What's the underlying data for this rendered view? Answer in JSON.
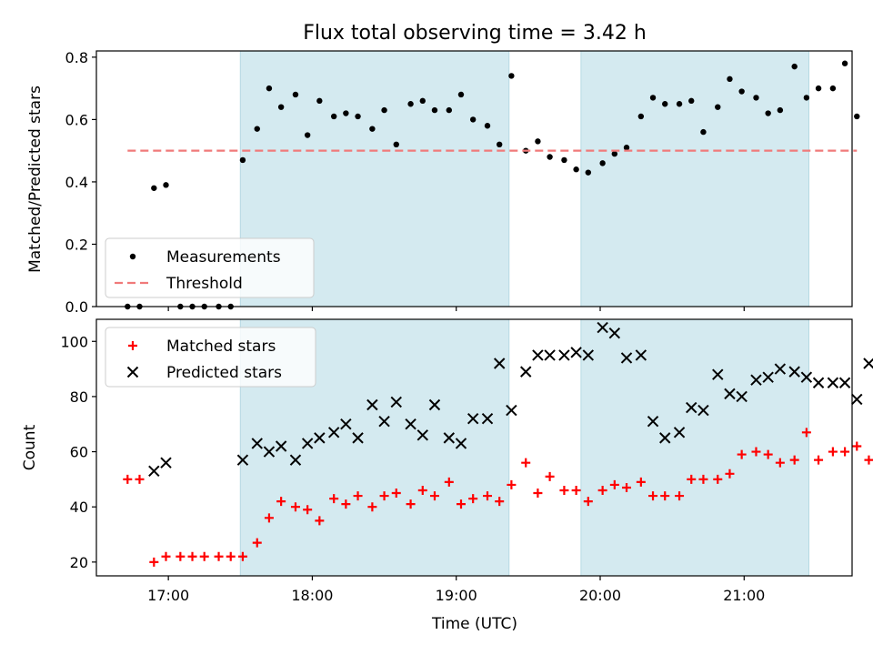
{
  "chart_data": [
    {
      "type": "scatter",
      "title": "Flux total observing time = 3.42 h",
      "ylabel": "Matched/Predicted stars",
      "xlabel": "",
      "xlim": [
        "16:30",
        "21:45"
      ],
      "ylim": [
        0,
        0.82
      ],
      "yticks": [
        0.0,
        0.2,
        0.4,
        0.6,
        0.8
      ],
      "ytick_labels": [
        "0.0",
        "0.2",
        "0.4",
        "0.6",
        "0.8"
      ],
      "grid": false,
      "legend": "lower-left",
      "shaded_spans": [
        [
          "17:30",
          "19:22"
        ],
        [
          "19:52",
          "21:27"
        ]
      ],
      "span_color": "#d4eaf0",
      "series": [
        {
          "name": "Measurements",
          "marker": "dot",
          "color": "#000000",
          "points": [
            [
              "16:43",
              0.0
            ],
            [
              "16:48",
              0.0
            ],
            [
              "16:54",
              0.38
            ],
            [
              "16:59",
              0.39
            ],
            [
              "17:05",
              0.0
            ],
            [
              "17:10",
              0.0
            ],
            [
              "17:15",
              0.0
            ],
            [
              "17:21",
              0.0
            ],
            [
              "17:26",
              0.0
            ],
            [
              "17:31",
              0.47
            ],
            [
              "17:37",
              0.57
            ],
            [
              "17:42",
              0.7
            ],
            [
              "17:47",
              0.64
            ],
            [
              "17:53",
              0.68
            ],
            [
              "17:58",
              0.55
            ],
            [
              "18:03",
              0.66
            ],
            [
              "18:09",
              0.61
            ],
            [
              "18:14",
              0.62
            ],
            [
              "18:19",
              0.61
            ],
            [
              "18:25",
              0.57
            ],
            [
              "18:30",
              0.63
            ],
            [
              "18:35",
              0.52
            ],
            [
              "18:41",
              0.65
            ],
            [
              "18:46",
              0.66
            ],
            [
              "18:51",
              0.63
            ],
            [
              "18:57",
              0.63
            ],
            [
              "19:02",
              0.68
            ],
            [
              "19:07",
              0.6
            ],
            [
              "19:13",
              0.58
            ],
            [
              "19:18",
              0.52
            ],
            [
              "19:23",
              0.74
            ],
            [
              "19:29",
              0.5
            ],
            [
              "19:34",
              0.53
            ],
            [
              "19:39",
              0.48
            ],
            [
              "19:45",
              0.47
            ],
            [
              "19:50",
              0.44
            ],
            [
              "19:55",
              0.43
            ],
            [
              "20:01",
              0.46
            ],
            [
              "20:06",
              0.49
            ],
            [
              "20:11",
              0.51
            ],
            [
              "20:17",
              0.61
            ],
            [
              "20:22",
              0.67
            ],
            [
              "20:27",
              0.65
            ],
            [
              "20:33",
              0.65
            ],
            [
              "20:38",
              0.66
            ],
            [
              "20:43",
              0.56
            ],
            [
              "20:49",
              0.64
            ],
            [
              "20:54",
              0.73
            ],
            [
              "20:59",
              0.69
            ],
            [
              "21:05",
              0.67
            ],
            [
              "21:10",
              0.62
            ],
            [
              "21:15",
              0.63
            ],
            [
              "21:21",
              0.77
            ],
            [
              "21:26",
              0.67
            ],
            [
              "21:31",
              0.7
            ],
            [
              "21:37",
              0.7
            ],
            [
              "21:42",
              0.78
            ],
            [
              "21:47",
              0.61
            ]
          ]
        },
        {
          "name": "Threshold",
          "marker": "dashed-line",
          "color": "#f07a7a",
          "points": [
            [
              "16:43",
              0.5
            ],
            [
              "21:47",
              0.5
            ]
          ]
        }
      ]
    },
    {
      "type": "scatter",
      "title": "",
      "ylabel": "Count",
      "xlabel": "Time (UTC)",
      "xlim": [
        "16:30",
        "21:45"
      ],
      "ylim": [
        15,
        108
      ],
      "yticks": [
        20,
        40,
        60,
        80,
        100
      ],
      "ytick_labels": [
        "20",
        "40",
        "60",
        "80",
        "100"
      ],
      "xticks": [
        "17:00",
        "18:00",
        "19:00",
        "20:00",
        "21:00"
      ],
      "xtick_labels": [
        "17:00",
        "18:00",
        "19:00",
        "20:00",
        "21:00"
      ],
      "grid": false,
      "legend": "upper-left",
      "shaded_spans": [
        [
          "17:30",
          "19:22"
        ],
        [
          "19:52",
          "21:27"
        ]
      ],
      "span_color": "#d4eaf0",
      "series": [
        {
          "name": "Matched stars",
          "marker": "plus",
          "color": "#ff0000",
          "points": [
            [
              "16:43",
              50
            ],
            [
              "16:48",
              50
            ],
            [
              "16:54",
              20
            ],
            [
              "16:59",
              22
            ],
            [
              "17:05",
              22
            ],
            [
              "17:10",
              22
            ],
            [
              "17:15",
              22
            ],
            [
              "17:21",
              22
            ],
            [
              "17:26",
              22
            ],
            [
              "17:31",
              22
            ],
            [
              "17:37",
              27
            ],
            [
              "17:42",
              36
            ],
            [
              "17:47",
              42
            ],
            [
              "17:53",
              40
            ],
            [
              "17:58",
              39
            ],
            [
              "18:03",
              35
            ],
            [
              "18:09",
              43
            ],
            [
              "18:14",
              41
            ],
            [
              "18:19",
              44
            ],
            [
              "18:25",
              40
            ],
            [
              "18:30",
              44
            ],
            [
              "18:35",
              45
            ],
            [
              "18:41",
              41
            ],
            [
              "18:46",
              46
            ],
            [
              "18:51",
              44
            ],
            [
              "18:57",
              49
            ],
            [
              "19:02",
              41
            ],
            [
              "19:07",
              43
            ],
            [
              "19:13",
              44
            ],
            [
              "19:18",
              42
            ],
            [
              "19:23",
              48
            ],
            [
              "19:29",
              56
            ],
            [
              "19:34",
              45
            ],
            [
              "19:39",
              51
            ],
            [
              "19:45",
              46
            ],
            [
              "19:50",
              46
            ],
            [
              "19:55",
              42
            ],
            [
              "20:01",
              46
            ],
            [
              "20:06",
              48
            ],
            [
              "20:11",
              47
            ],
            [
              "20:17",
              49
            ],
            [
              "20:22",
              44
            ],
            [
              "20:27",
              44
            ],
            [
              "20:33",
              44
            ],
            [
              "20:38",
              50
            ],
            [
              "20:43",
              50
            ],
            [
              "20:49",
              50
            ],
            [
              "20:54",
              52
            ],
            [
              "20:59",
              59
            ],
            [
              "21:05",
              60
            ],
            [
              "21:10",
              59
            ],
            [
              "21:15",
              56
            ],
            [
              "21:21",
              57
            ],
            [
              "21:26",
              67
            ],
            [
              "21:31",
              57
            ],
            [
              "21:37",
              60
            ],
            [
              "21:42",
              60
            ],
            [
              "21:47",
              62
            ],
            [
              "21:52",
              57
            ]
          ]
        },
        {
          "name": "Predicted stars",
          "marker": "x",
          "color": "#000000",
          "points": [
            [
              "16:54",
              53
            ],
            [
              "16:59",
              56
            ],
            [
              "17:31",
              57
            ],
            [
              "17:37",
              63
            ],
            [
              "17:42",
              60
            ],
            [
              "17:47",
              62
            ],
            [
              "17:53",
              57
            ],
            [
              "17:58",
              63
            ],
            [
              "18:03",
              65
            ],
            [
              "18:09",
              67
            ],
            [
              "18:14",
              70
            ],
            [
              "18:19",
              65
            ],
            [
              "18:25",
              77
            ],
            [
              "18:30",
              71
            ],
            [
              "18:35",
              78
            ],
            [
              "18:41",
              70
            ],
            [
              "18:46",
              66
            ],
            [
              "18:51",
              77
            ],
            [
              "18:57",
              65
            ],
            [
              "19:02",
              63
            ],
            [
              "19:07",
              72
            ],
            [
              "19:13",
              72
            ],
            [
              "19:18",
              92
            ],
            [
              "19:23",
              75
            ],
            [
              "19:29",
              89
            ],
            [
              "19:34",
              95
            ],
            [
              "19:39",
              95
            ],
            [
              "19:45",
              95
            ],
            [
              "19:50",
              96
            ],
            [
              "19:55",
              95
            ],
            [
              "20:01",
              105
            ],
            [
              "20:06",
              103
            ],
            [
              "20:11",
              94
            ],
            [
              "20:17",
              95
            ],
            [
              "20:22",
              71
            ],
            [
              "20:27",
              65
            ],
            [
              "20:33",
              67
            ],
            [
              "20:38",
              76
            ],
            [
              "20:43",
              75
            ],
            [
              "20:49",
              88
            ],
            [
              "20:54",
              81
            ],
            [
              "20:59",
              80
            ],
            [
              "21:05",
              86
            ],
            [
              "21:10",
              87
            ],
            [
              "21:15",
              90
            ],
            [
              "21:21",
              89
            ],
            [
              "21:26",
              87
            ],
            [
              "21:31",
              85
            ],
            [
              "21:37",
              85
            ],
            [
              "21:42",
              85
            ],
            [
              "21:47",
              79
            ],
            [
              "21:52",
              92
            ]
          ]
        }
      ]
    }
  ]
}
